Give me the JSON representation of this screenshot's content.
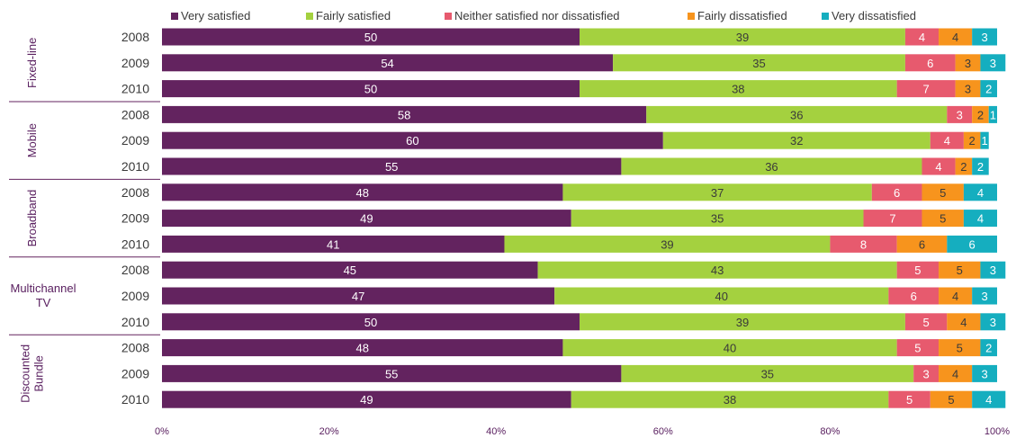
{
  "chart_data": {
    "type": "bar",
    "orientation": "horizontal",
    "stacked": true,
    "percent_stacked": true,
    "legend_position": "top",
    "series": [
      {
        "name": "Very satisfied",
        "color": "#63235f",
        "label_color": "#ffffff"
      },
      {
        "name": "Fairly satisfied",
        "color": "#a4d13f",
        "label_color": "#3a3a3a"
      },
      {
        "name": "Neither satisfied nor dissatisfied",
        "color": "#e75a6e",
        "label_color": "#ffffff"
      },
      {
        "name": "Fairly dissatisfied",
        "color": "#f7941d",
        "label_color": "#3a3a3a"
      },
      {
        "name": "Very dissatisfied",
        "color": "#15aebf",
        "label_color": "#ffffff"
      }
    ],
    "groups": [
      {
        "label": [
          "Fixed-line"
        ],
        "vertical": true,
        "rows": [
          {
            "year": "2008",
            "values": [
              50,
              39,
              4,
              4,
              3
            ]
          },
          {
            "year": "2009",
            "values": [
              54,
              35,
              6,
              3,
              3
            ]
          },
          {
            "year": "2010",
            "values": [
              50,
              38,
              7,
              3,
              2
            ]
          }
        ]
      },
      {
        "label": [
          "Mobile"
        ],
        "vertical": true,
        "rows": [
          {
            "year": "2008",
            "values": [
              58,
              36,
              3,
              2,
              1
            ]
          },
          {
            "year": "2009",
            "values": [
              60,
              32,
              4,
              2,
              1
            ]
          },
          {
            "year": "2010",
            "values": [
              55,
              36,
              4,
              2,
              2
            ]
          }
        ]
      },
      {
        "label": [
          "Broadband"
        ],
        "vertical": true,
        "rows": [
          {
            "year": "2008",
            "values": [
              48,
              37,
              6,
              5,
              4
            ]
          },
          {
            "year": "2009",
            "values": [
              49,
              35,
              7,
              5,
              4
            ]
          },
          {
            "year": "2010",
            "values": [
              41,
              39,
              8,
              6,
              6
            ]
          }
        ]
      },
      {
        "label": [
          "Multichannel",
          "TV"
        ],
        "vertical": false,
        "rows": [
          {
            "year": "2008",
            "values": [
              45,
              43,
              5,
              5,
              3
            ]
          },
          {
            "year": "2009",
            "values": [
              47,
              40,
              6,
              4,
              3
            ]
          },
          {
            "year": "2010",
            "values": [
              50,
              39,
              5,
              4,
              3
            ]
          }
        ]
      },
      {
        "label": [
          "Discounted",
          "Bundle"
        ],
        "vertical": true,
        "rows": [
          {
            "year": "2008",
            "values": [
              48,
              40,
              5,
              5,
              2
            ]
          },
          {
            "year": "2009",
            "values": [
              55,
              35,
              3,
              4,
              3
            ]
          },
          {
            "year": "2010",
            "values": [
              49,
              38,
              5,
              5,
              4
            ]
          }
        ]
      }
    ],
    "x_ticks": [
      "0%",
      "20%",
      "40%",
      "60%",
      "80%",
      "100%"
    ],
    "xlim": [
      0,
      100
    ]
  }
}
